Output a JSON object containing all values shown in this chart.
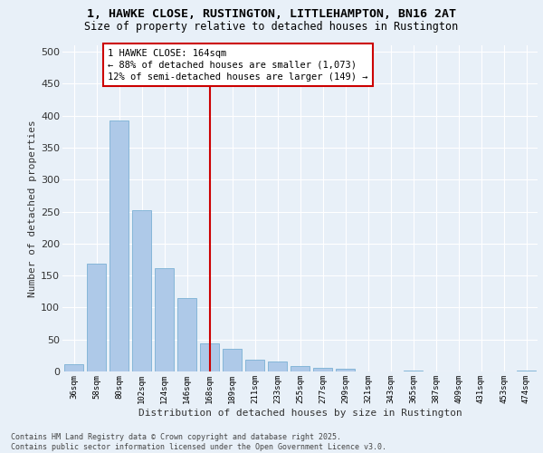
{
  "title_line1": "1, HAWKE CLOSE, RUSTINGTON, LITTLEHAMPTON, BN16 2AT",
  "title_line2": "Size of property relative to detached houses in Rustington",
  "xlabel": "Distribution of detached houses by size in Rustington",
  "ylabel": "Number of detached properties",
  "categories": [
    "36sqm",
    "58sqm",
    "80sqm",
    "102sqm",
    "124sqm",
    "146sqm",
    "168sqm",
    "189sqm",
    "211sqm",
    "233sqm",
    "255sqm",
    "277sqm",
    "299sqm",
    "321sqm",
    "343sqm",
    "365sqm",
    "387sqm",
    "409sqm",
    "431sqm",
    "453sqm",
    "474sqm"
  ],
  "values": [
    12,
    168,
    393,
    252,
    161,
    115,
    44,
    35,
    18,
    15,
    8,
    5,
    4,
    0,
    0,
    2,
    0,
    0,
    0,
    0,
    2
  ],
  "bar_color": "#aec9e8",
  "bar_edge_color": "#7ab0d4",
  "vline_x": 6,
  "vline_color": "#cc0000",
  "annotation_text": "1 HAWKE CLOSE: 164sqm\n← 88% of detached houses are smaller (1,073)\n12% of semi-detached houses are larger (149) →",
  "annotation_box_color": "#cc0000",
  "background_color": "#e8f0f8",
  "grid_color": "#ffffff",
  "footnote": "Contains HM Land Registry data © Crown copyright and database right 2025.\nContains public sector information licensed under the Open Government Licence v3.0.",
  "ylim": [
    0,
    510
  ],
  "yticks": [
    0,
    50,
    100,
    150,
    200,
    250,
    300,
    350,
    400,
    450,
    500
  ]
}
